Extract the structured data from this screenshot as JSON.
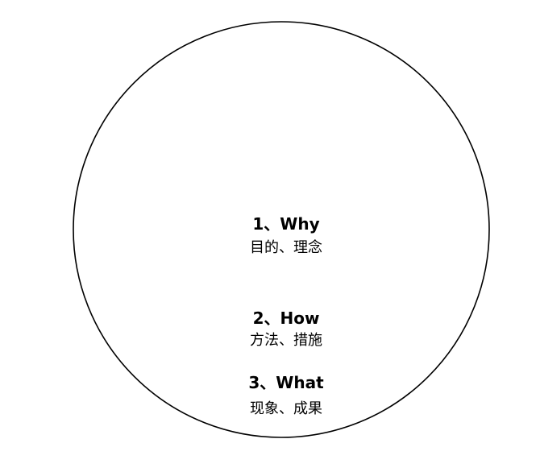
{
  "diagram": {
    "type": "golden-circle",
    "outline_color": "#000000",
    "background_color": "#ffffff",
    "layers": [
      {
        "title": "1、Why",
        "subtitle": "目的、理念"
      },
      {
        "title": "2、How",
        "subtitle": "方法、措施"
      },
      {
        "title": "3、What",
        "subtitle": "现象、成果"
      }
    ]
  }
}
